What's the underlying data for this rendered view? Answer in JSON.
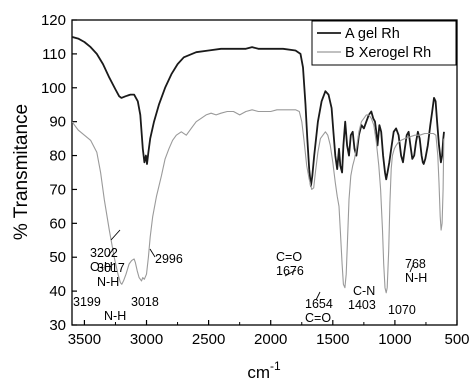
{
  "chart_data": {
    "type": "line",
    "title": "",
    "xlabel": "cm",
    "xlabel_sup": "-1",
    "ylabel": "% Transmitance",
    "xlim": [
      3600,
      500
    ],
    "ylim": [
      30,
      120
    ],
    "x_ticks": [
      3500,
      3000,
      2500,
      2000,
      1500,
      1000,
      500
    ],
    "y_ticks": [
      30,
      40,
      50,
      60,
      70,
      80,
      90,
      100,
      110,
      120
    ],
    "grid": false,
    "legend_position": "top-right",
    "series": [
      {
        "name": "A gel Rh",
        "color": "#1a1a1a",
        "points": [
          [
            3600,
            115
          ],
          [
            3550,
            114.5
          ],
          [
            3500,
            113.5
          ],
          [
            3450,
            112
          ],
          [
            3400,
            110
          ],
          [
            3350,
            107
          ],
          [
            3300,
            103
          ],
          [
            3250,
            99.5
          ],
          [
            3220,
            97.5
          ],
          [
            3202,
            97
          ],
          [
            3170,
            97.5
          ],
          [
            3130,
            98
          ],
          [
            3100,
            98
          ],
          [
            3070,
            96
          ],
          [
            3050,
            92
          ],
          [
            3030,
            82
          ],
          [
            3017,
            78
          ],
          [
            3005,
            80
          ],
          [
            2996,
            77.5
          ],
          [
            2985,
            81
          ],
          [
            2970,
            85
          ],
          [
            2940,
            90
          ],
          [
            2900,
            95
          ],
          [
            2850,
            100
          ],
          [
            2800,
            104
          ],
          [
            2750,
            107
          ],
          [
            2700,
            109
          ],
          [
            2600,
            110.5
          ],
          [
            2500,
            111
          ],
          [
            2400,
            111.5
          ],
          [
            2300,
            111.5
          ],
          [
            2200,
            111.5
          ],
          [
            2150,
            112
          ],
          [
            2100,
            111.5
          ],
          [
            2000,
            111.5
          ],
          [
            1900,
            111.5
          ],
          [
            1800,
            111
          ],
          [
            1760,
            110
          ],
          [
            1740,
            106
          ],
          [
            1720,
            95
          ],
          [
            1705,
            85
          ],
          [
            1690,
            76
          ],
          [
            1676,
            71
          ],
          [
            1665,
            74
          ],
          [
            1650,
            80
          ],
          [
            1620,
            90
          ],
          [
            1590,
            96
          ],
          [
            1560,
            99
          ],
          [
            1535,
            98
          ],
          [
            1510,
            94
          ],
          [
            1495,
            87
          ],
          [
            1480,
            80
          ],
          [
            1465,
            76
          ],
          [
            1450,
            82
          ],
          [
            1440,
            77
          ],
          [
            1425,
            75
          ],
          [
            1415,
            83
          ],
          [
            1400,
            90
          ],
          [
            1385,
            83
          ],
          [
            1370,
            80
          ],
          [
            1355,
            86
          ],
          [
            1340,
            87
          ],
          [
            1325,
            82
          ],
          [
            1310,
            80
          ],
          [
            1290,
            86
          ],
          [
            1270,
            89
          ],
          [
            1250,
            88
          ],
          [
            1230,
            90
          ],
          [
            1210,
            92
          ],
          [
            1190,
            93
          ],
          [
            1175,
            91
          ],
          [
            1160,
            90
          ],
          [
            1150,
            87
          ],
          [
            1140,
            83
          ],
          [
            1125,
            89
          ],
          [
            1110,
            87
          ],
          [
            1095,
            80
          ],
          [
            1080,
            75
          ],
          [
            1070,
            73
          ],
          [
            1060,
            75
          ],
          [
            1045,
            78
          ],
          [
            1030,
            82
          ],
          [
            1010,
            87
          ],
          [
            990,
            88
          ],
          [
            970,
            86
          ],
          [
            950,
            80
          ],
          [
            935,
            78
          ],
          [
            920,
            82
          ],
          [
            905,
            86
          ],
          [
            890,
            87
          ],
          [
            875,
            83
          ],
          [
            860,
            79
          ],
          [
            845,
            80
          ],
          [
            830,
            84
          ],
          [
            815,
            87
          ],
          [
            800,
            85
          ],
          [
            785,
            80
          ],
          [
            775,
            78
          ],
          [
            768,
            77.5
          ],
          [
            755,
            79
          ],
          [
            735,
            83
          ],
          [
            715,
            89
          ],
          [
            700,
            93
          ],
          [
            685,
            97
          ],
          [
            672,
            96
          ],
          [
            660,
            90
          ],
          [
            645,
            83
          ],
          [
            630,
            78
          ],
          [
            620,
            80
          ],
          [
            610,
            85
          ],
          [
            605,
            87
          ]
        ]
      },
      {
        "name": "B Xerogel Rh",
        "color": "#9a9a9a",
        "points": [
          [
            3600,
            90
          ],
          [
            3580,
            89
          ],
          [
            3550,
            87.5
          ],
          [
            3500,
            86
          ],
          [
            3450,
            84.5
          ],
          [
            3400,
            81
          ],
          [
            3370,
            75
          ],
          [
            3340,
            67
          ],
          [
            3300,
            58
          ],
          [
            3260,
            50
          ],
          [
            3230,
            45
          ],
          [
            3210,
            42.5
          ],
          [
            3199,
            42
          ],
          [
            3185,
            43
          ],
          [
            3165,
            45
          ],
          [
            3140,
            48
          ],
          [
            3120,
            49
          ],
          [
            3100,
            49.5
          ],
          [
            3090,
            48.5
          ],
          [
            3075,
            46
          ],
          [
            3060,
            44
          ],
          [
            3040,
            43
          ],
          [
            3030,
            44
          ],
          [
            3018,
            43.5
          ],
          [
            3000,
            45
          ],
          [
            2985,
            50
          ],
          [
            2970,
            56
          ],
          [
            2950,
            62
          ],
          [
            2920,
            68
          ],
          [
            2880,
            74
          ],
          [
            2850,
            79
          ],
          [
            2820,
            82
          ],
          [
            2790,
            84.5
          ],
          [
            2760,
            86
          ],
          [
            2720,
            87
          ],
          [
            2680,
            86
          ],
          [
            2640,
            88
          ],
          [
            2600,
            90
          ],
          [
            2560,
            91
          ],
          [
            2520,
            92
          ],
          [
            2480,
            92.5
          ],
          [
            2440,
            92
          ],
          [
            2400,
            92.5
          ],
          [
            2350,
            93
          ],
          [
            2300,
            93
          ],
          [
            2250,
            92
          ],
          [
            2200,
            93
          ],
          [
            2150,
            93.5
          ],
          [
            2100,
            93
          ],
          [
            2050,
            93
          ],
          [
            2000,
            93
          ],
          [
            1950,
            93.5
          ],
          [
            1900,
            93.5
          ],
          [
            1850,
            93.5
          ],
          [
            1800,
            93.5
          ],
          [
            1770,
            93
          ],
          [
            1750,
            90
          ],
          [
            1730,
            84
          ],
          [
            1710,
            77
          ],
          [
            1690,
            73
          ],
          [
            1670,
            70
          ],
          [
            1654,
            70.5
          ],
          [
            1640,
            75
          ],
          [
            1620,
            81
          ],
          [
            1600,
            85
          ],
          [
            1580,
            86
          ],
          [
            1560,
            87
          ],
          [
            1540,
            86
          ],
          [
            1520,
            83
          ],
          [
            1500,
            78
          ],
          [
            1480,
            72
          ],
          [
            1465,
            68
          ],
          [
            1450,
            65
          ],
          [
            1440,
            58
          ],
          [
            1425,
            48
          ],
          [
            1415,
            42
          ],
          [
            1403,
            41
          ],
          [
            1392,
            45
          ],
          [
            1382,
            55
          ],
          [
            1370,
            67
          ],
          [
            1355,
            74
          ],
          [
            1340,
            77
          ],
          [
            1325,
            79
          ],
          [
            1310,
            82
          ],
          [
            1290,
            87
          ],
          [
            1270,
            90
          ],
          [
            1250,
            91
          ],
          [
            1230,
            92
          ],
          [
            1210,
            92
          ],
          [
            1190,
            91
          ],
          [
            1170,
            89
          ],
          [
            1150,
            84
          ],
          [
            1130,
            77
          ],
          [
            1115,
            70
          ],
          [
            1100,
            58
          ],
          [
            1090,
            48
          ],
          [
            1080,
            41
          ],
          [
            1070,
            39.5
          ],
          [
            1062,
            41
          ],
          [
            1050,
            52
          ],
          [
            1040,
            66
          ],
          [
            1030,
            76
          ],
          [
            1020,
            80
          ],
          [
            1005,
            82
          ],
          [
            990,
            83
          ],
          [
            970,
            84
          ],
          [
            950,
            84.5
          ],
          [
            920,
            85
          ],
          [
            880,
            85.5
          ],
          [
            840,
            86
          ],
          [
            800,
            86
          ],
          [
            760,
            86.5
          ],
          [
            720,
            86.5
          ],
          [
            690,
            86.5
          ],
          [
            670,
            86
          ],
          [
            655,
            80
          ],
          [
            645,
            72
          ],
          [
            635,
            62
          ],
          [
            628,
            58
          ],
          [
            620,
            60
          ],
          [
            612,
            70
          ],
          [
            606,
            85
          ]
        ]
      }
    ],
    "annotations": [
      {
        "lines": [
          "3202",
          "O-H"
        ]
      },
      {
        "lines": [
          "3017",
          "N-H"
        ]
      },
      {
        "lines": [
          "2996"
        ]
      },
      {
        "lines": [
          "3199"
        ]
      },
      {
        "lines": [
          "3018"
        ]
      },
      {
        "lines": [
          "N-H"
        ]
      },
      {
        "lines": [
          "C=O",
          "1676"
        ]
      },
      {
        "lines": [
          "1654",
          "C=O"
        ]
      },
      {
        "lines": [
          "C-N"
        ]
      },
      {
        "lines": [
          "1403"
        ]
      },
      {
        "lines": [
          "1070"
        ]
      },
      {
        "lines": [
          "768",
          "N-H"
        ]
      }
    ]
  }
}
